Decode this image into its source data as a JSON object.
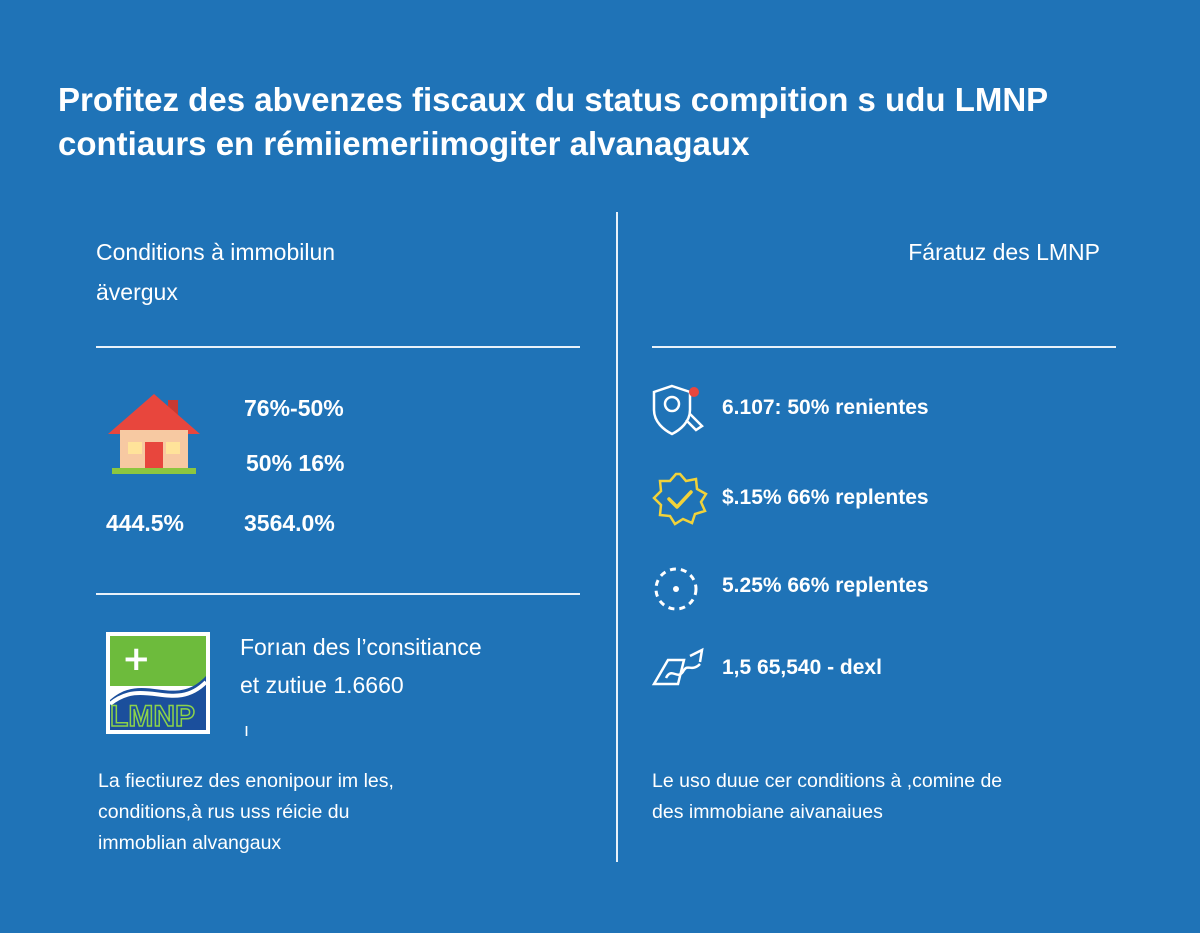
{
  "colors": {
    "background": "#1f73b7",
    "text": "#ffffff",
    "icon_accent": "#f1d23a",
    "house_roof": "#e8463d",
    "lmnp_green": "#6dbb3c"
  },
  "title": {
    "line1": "Profitez des abvenzes fiscaux du status compition s udu LMNP",
    "line2": "contiaurs en rémiiemeriimogiter alvanagaux"
  },
  "left": {
    "heading_line1": "Conditions à immobilun",
    "heading_line2": "ävergux",
    "stats": [
      "76%-50%",
      "50% 16%",
      "444.5%",
      "3564.0%"
    ],
    "house_icon": "house-icon",
    "lmnp_logo": {
      "icon": "lmnp-logo-icon",
      "text": "LMNP",
      "plus": "+"
    },
    "lmnp_text_line1": "Forıan des l’consitiance",
    "lmnp_text_line2": "et zutiue 1.6660",
    "tick": "ı",
    "paragraph": [
      "La fiectiurez des enonipour im les,",
      "conditions,à rus uss réicie du",
      "immoblian alvangaux"
    ]
  },
  "right": {
    "heading": "Fáratuz des LMNP",
    "items": [
      {
        "icon": "shield-badge-icon",
        "text": "6.107: 50% renientes"
      },
      {
        "icon": "verified-check-icon",
        "text": "$.15% 66% replentes"
      },
      {
        "icon": "dotted-circle-icon",
        "text": "5.25% 66% replentes"
      },
      {
        "icon": "signature-icon",
        "text": "1,5 65,540 - dexl"
      }
    ],
    "paragraph": [
      "Le uso duue cer conditions à ,comine de",
      "des immobiane aivanaiues"
    ]
  }
}
